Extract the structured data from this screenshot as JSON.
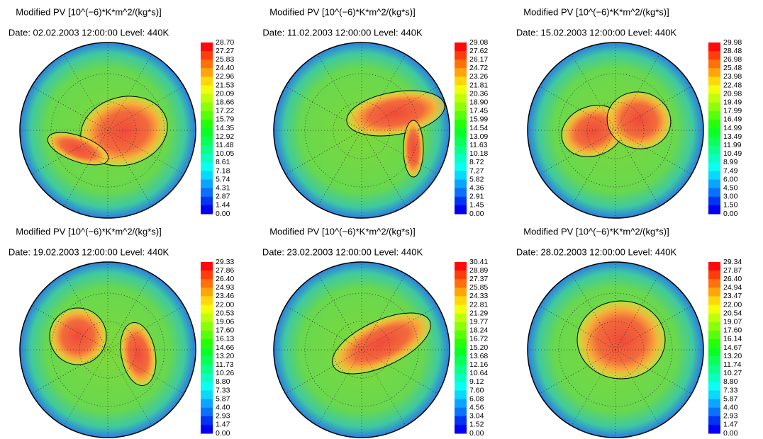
{
  "panels": [
    {
      "title": "Modified PV [10^(−6)*K*m^2/(kg*s)]",
      "date": "Date: 02.02.2003 12:00:00  Level: 440K",
      "colorbar": [
        "28.70",
        "27.27",
        "25.83",
        "24.40",
        "22.96",
        "21.53",
        "20.09",
        "18.66",
        "17.22",
        "15.79",
        "14.35",
        "12.92",
        "11.48",
        "10.05",
        "8.61",
        "7.18",
        "5.74",
        "4.31",
        "2.87",
        "1.44",
        "0.00"
      ]
    },
    {
      "title": "Modified PV [10^(−6)*K*m^2/(kg*s)]",
      "date": "Date: 11.02.2003 12:00:00  Level: 440K",
      "colorbar": [
        "29.08",
        "27.62",
        "26.17",
        "24.72",
        "23.26",
        "21.81",
        "20.36",
        "18.90",
        "17.45",
        "15.99",
        "14.54",
        "13.09",
        "11.63",
        "10.18",
        "8.72",
        "7.27",
        "5.82",
        "4.36",
        "2.91",
        "1.45",
        "0.00"
      ]
    },
    {
      "title": "Modified PV [10^(−6)*K*m^2/(kg*s)]",
      "date": "Date: 15.02.2003 12:00:00  Level: 440K",
      "colorbar": [
        "29.98",
        "28.48",
        "26.98",
        "25.48",
        "23.98",
        "22.48",
        "20.98",
        "19.49",
        "17.99",
        "16.49",
        "14.99",
        "13.49",
        "11.99",
        "10.49",
        "8.99",
        "7.49",
        "6.00",
        "4.50",
        "3.00",
        "1.50",
        "0.00"
      ]
    },
    {
      "title": "Modified PV [10^(−6)*K*m^2/(kg*s)]",
      "date": "Date: 19.02.2003 12:00:00  Level: 440K",
      "colorbar": [
        "29.33",
        "27.86",
        "26.40",
        "24.93",
        "23.46",
        "22.00",
        "20.53",
        "19.06",
        "17.60",
        "16.13",
        "14.66",
        "13.20",
        "11.73",
        "10.26",
        "8.80",
        "7.33",
        "5.87",
        "4.40",
        "2.93",
        "1.47",
        "0.00"
      ]
    },
    {
      "title": "Modified PV [10^(−6)*K*m^2/(kg*s)]",
      "date": "Date: 23.02.2003 12:00:00  Level: 440K",
      "colorbar": [
        "30.41",
        "28.89",
        "27.37",
        "25.85",
        "24.33",
        "22.81",
        "21.29",
        "19.77",
        "18.24",
        "16.72",
        "15.20",
        "13.68",
        "12.16",
        "10.64",
        "9.12",
        "7.60",
        "6.08",
        "4.56",
        "3.04",
        "1.52",
        "0.00"
      ]
    },
    {
      "title": "Modified PV [10^(−6)*K*m^2/(kg*s)]",
      "date": "Date: 28.02.2003 12:00:00  Level: 440K",
      "colorbar": [
        "29.34",
        "27.87",
        "26.40",
        "24.94",
        "23.47",
        "22.00",
        "20.54",
        "19.07",
        "17.60",
        "16.14",
        "14.67",
        "13.20",
        "11.74",
        "10.27",
        "8.80",
        "7.33",
        "5.87",
        "4.40",
        "2.93",
        "1.47",
        "0.00"
      ]
    }
  ]
}
